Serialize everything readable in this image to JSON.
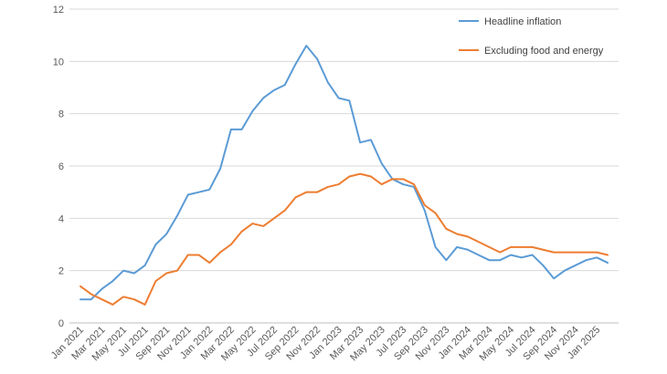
{
  "chart_data": {
    "type": "line",
    "title": "",
    "xlabel": "",
    "ylabel": "",
    "ylim": [
      0,
      12
    ],
    "yticks": [
      0,
      2,
      4,
      6,
      8,
      10,
      12
    ],
    "grid": "horizontal",
    "legend_position": "top-right",
    "x": [
      "Jan 2021",
      "Feb 2021",
      "Mar 2021",
      "Apr 2021",
      "May 2021",
      "Jun 2021",
      "Jul 2021",
      "Aug 2021",
      "Sep 2021",
      "Oct 2021",
      "Nov 2021",
      "Dec 2021",
      "Jan 2022",
      "Feb 2022",
      "Mar 2022",
      "Apr 2022",
      "May 2022",
      "Jun 2022",
      "Jul 2022",
      "Aug 2022",
      "Sep 2022",
      "Oct 2022",
      "Nov 2022",
      "Dec 2022",
      "Jan 2023",
      "Feb 2023",
      "Mar 2023",
      "Apr 2023",
      "May 2023",
      "Jun 2023",
      "Jul 2023",
      "Aug 2023",
      "Sep 2023",
      "Oct 2023",
      "Nov 2023",
      "Dec 2023",
      "Jan 2024",
      "Feb 2024",
      "Mar 2024",
      "Apr 2024",
      "May 2024",
      "Jun 2024",
      "Jul 2024",
      "Aug 2024",
      "Sep 2024",
      "Oct 2024",
      "Nov 2024",
      "Dec 2024",
      "Jan 2025",
      "Feb 2025"
    ],
    "xtick_labels": [
      "Jan 2021",
      "Mar 2021",
      "May 2021",
      "Jul 2021",
      "Sep 2021",
      "Nov 2021",
      "Jan 2022",
      "Mar 2022",
      "May 2022",
      "Jul 2022",
      "Sep 2022",
      "Nov 2022",
      "Jan 2023",
      "Mar 2023",
      "May 2023",
      "Jul 2023",
      "Sep 2023",
      "Nov 2023",
      "Jan 2024",
      "Mar 2024",
      "May 2024",
      "Jul 2024",
      "Sep 2024",
      "Nov 2024",
      "Jan 2025"
    ],
    "series": [
      {
        "name": "Headline inflation",
        "color": "#5B9BD5",
        "values": [
          0.9,
          0.9,
          1.3,
          1.6,
          2.0,
          1.9,
          2.2,
          3.0,
          3.4,
          4.1,
          4.9,
          5.0,
          5.1,
          5.9,
          7.4,
          7.4,
          8.1,
          8.6,
          8.9,
          9.1,
          9.9,
          10.6,
          10.1,
          9.2,
          8.6,
          8.5,
          6.9,
          7.0,
          6.1,
          5.5,
          5.3,
          5.2,
          4.3,
          2.9,
          2.4,
          2.9,
          2.8,
          2.6,
          2.4,
          2.4,
          2.6,
          2.5,
          2.6,
          2.2,
          1.7,
          2.0,
          2.2,
          2.4,
          2.5,
          2.3
        ]
      },
      {
        "name": "Excluding food and energy",
        "color": "#ED7D31",
        "values": [
          1.4,
          1.1,
          0.9,
          0.7,
          1.0,
          0.9,
          0.7,
          1.6,
          1.9,
          2.0,
          2.6,
          2.6,
          2.3,
          2.7,
          3.0,
          3.5,
          3.8,
          3.7,
          4.0,
          4.3,
          4.8,
          5.0,
          5.0,
          5.2,
          5.3,
          5.6,
          5.7,
          5.6,
          5.3,
          5.5,
          5.5,
          5.3,
          4.5,
          4.2,
          3.6,
          3.4,
          3.3,
          3.1,
          2.9,
          2.7,
          2.9,
          2.9,
          2.9,
          2.8,
          2.7,
          2.7,
          2.7,
          2.7,
          2.7,
          2.6
        ]
      }
    ]
  }
}
